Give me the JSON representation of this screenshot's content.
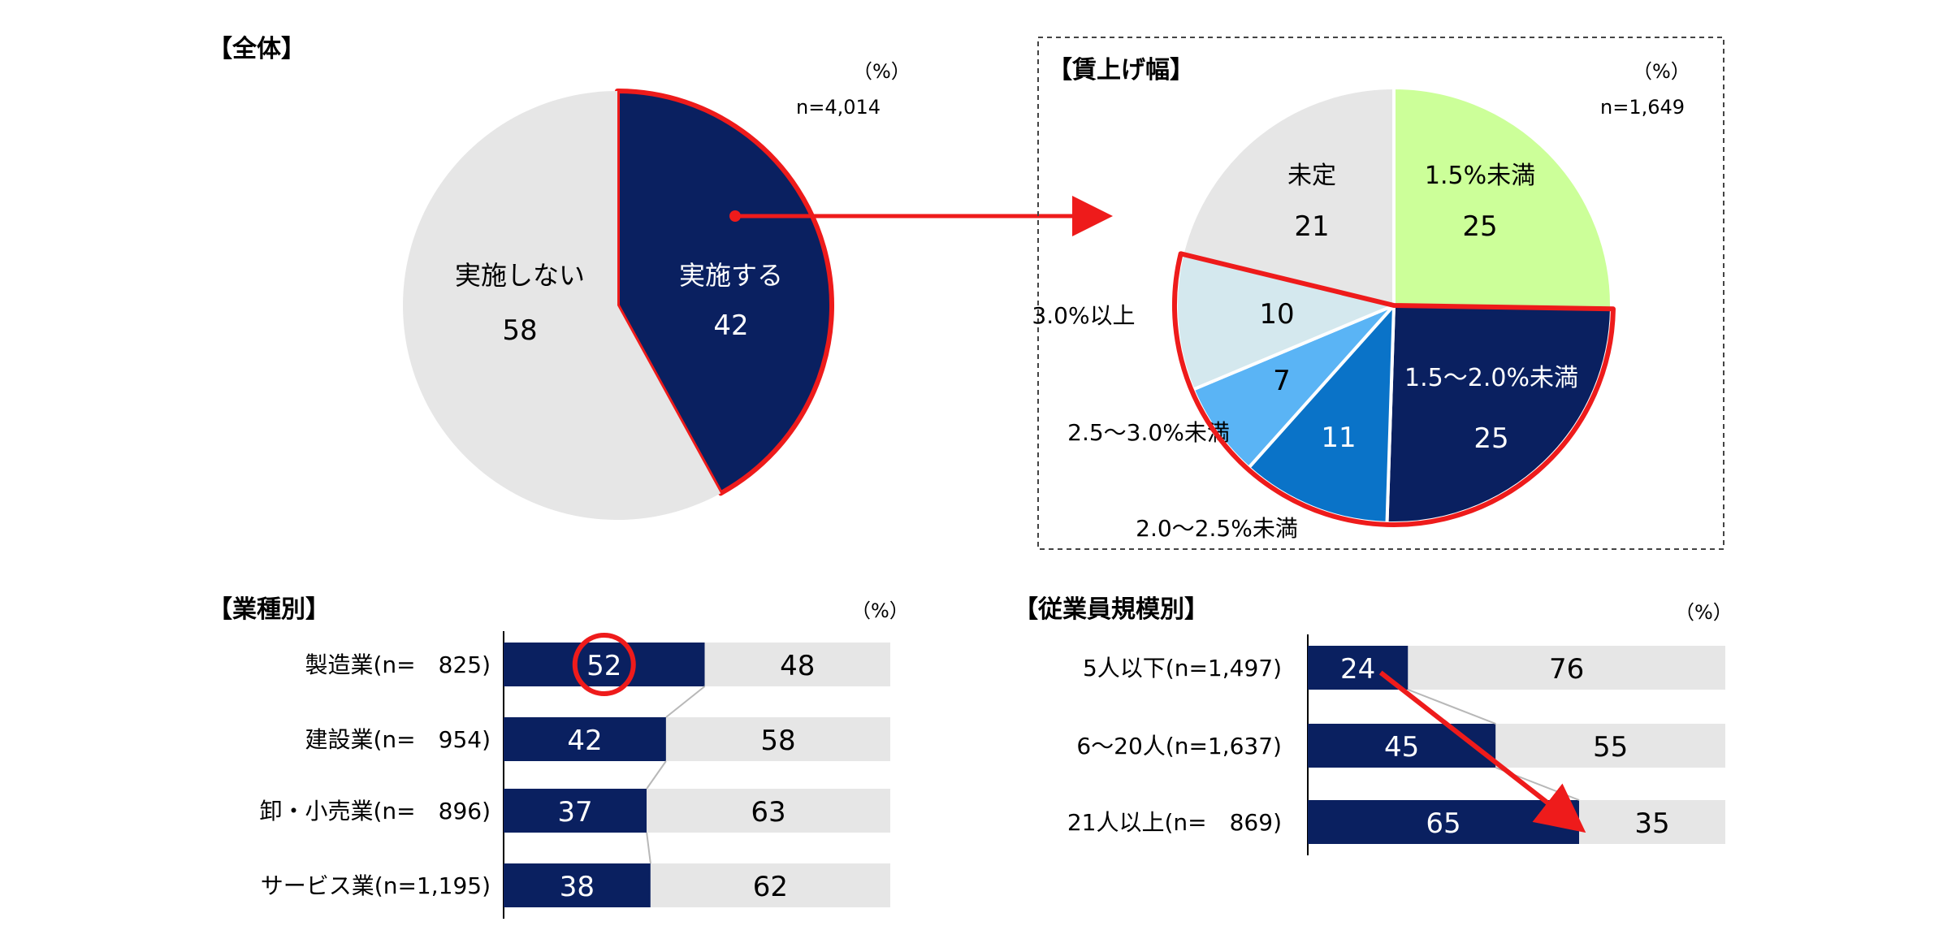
{
  "colors": {
    "navy": "#0A2060",
    "grey": "#E6E6E6",
    "lime": "#CCFF99",
    "lightBlue": "#D4E8EE",
    "skyBlue": "#5AB4F5",
    "midBlue": "#0A73C8",
    "red": "#EE1B1B",
    "connector": "#B8B8B8"
  },
  "chart_data": [
    {
      "type": "pie",
      "title": "【全体】",
      "unit": "（%）",
      "n": "n=4,014",
      "slices": [
        {
          "label": "実施する",
          "value": 42,
          "color": "#0A2060",
          "highlight": true
        },
        {
          "label": "実施しない",
          "value": 58,
          "color": "#E6E6E6",
          "highlight": false
        }
      ]
    },
    {
      "type": "pie",
      "title": "【賃上げ幅】",
      "unit": "（%）",
      "n": "n=1,649",
      "slices": [
        {
          "label": "1.5%未満",
          "value": 25,
          "color": "#CCFF99"
        },
        {
          "label": "1.5～2.0%未満",
          "value": 25,
          "color": "#0A2060"
        },
        {
          "label": "2.0～2.5%未満",
          "value": 11,
          "color": "#0A73C8"
        },
        {
          "label": "2.5～3.0%未満",
          "value": 7,
          "color": "#5AB4F5"
        },
        {
          "label": "3.0%以上",
          "value": 10,
          "color": "#D4E8EE"
        },
        {
          "label": "未定",
          "value": 21,
          "color": "#E6E6E6"
        }
      ],
      "highlight_range": "2.0%以上 (1.5～2.0%未満, 2.0～2.5%未満, 2.5～3.0%未満, 3.0%以上)"
    },
    {
      "type": "bar",
      "stacked": true,
      "orientation": "horizontal",
      "title": "【業種別】",
      "unit": "（%）",
      "categories": [
        "製造業(n=　825)",
        "建設業(n=　954)",
        "卸・小売業(n=　896)",
        "サービス業(n=1,195)"
      ],
      "series": [
        {
          "values": [
            52,
            42,
            37,
            38
          ],
          "color": "#0A2060"
        },
        {
          "values": [
            48,
            58,
            63,
            62
          ],
          "color": "#E6E6E6"
        }
      ],
      "circled": "52"
    },
    {
      "type": "bar",
      "stacked": true,
      "orientation": "horizontal",
      "title": "【従業員規模別】",
      "unit": "（%）",
      "categories": [
        "5人以下(n=1,497)",
        "6～20人(n=1,637)",
        "21人以上(n=　869)"
      ],
      "series": [
        {
          "values": [
            24,
            45,
            65
          ],
          "color": "#0A2060"
        },
        {
          "values": [
            76,
            55,
            35
          ],
          "color": "#E6E6E6"
        }
      ]
    }
  ]
}
